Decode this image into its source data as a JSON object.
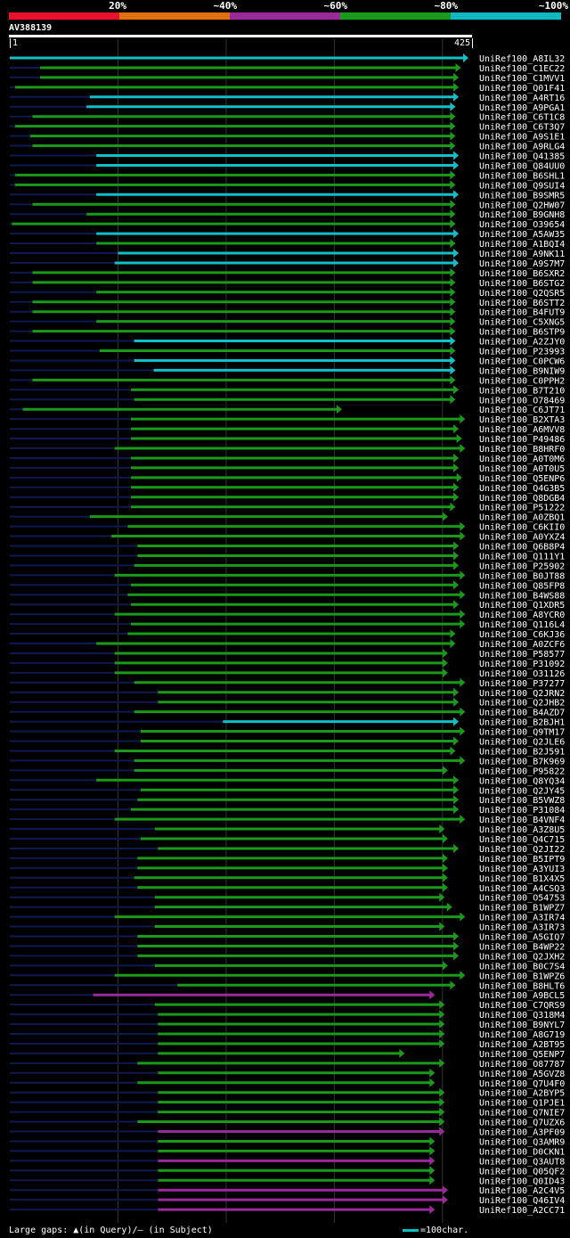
{
  "chart_data": {
    "type": "alignment-map",
    "query_name": "AV388139",
    "query_start": "1",
    "query_end": "425",
    "query_length": 425,
    "legend": [
      {
        "label": "",
        "color": "#e8102a"
      },
      {
        "label": "20%",
        "color": "#e07010"
      },
      {
        "label": "~40%",
        "color": "#9a2a9a"
      },
      {
        "label": "~60%",
        "color": "#1a9a1a"
      },
      {
        "label": "~80%",
        "color": "#10b8c0"
      },
      {
        "label": "~100%",
        "color": ""
      }
    ],
    "identity_colors": {
      "cyan": "#10c0c8",
      "green": "#1a9a1a",
      "purple": "#9a2a9a"
    },
    "hits": [
      {
        "name": "UniRef100_A8IL32",
        "start": 1,
        "end": 425,
        "color": "cyan"
      },
      {
        "name": "UniRef100_C1EC22",
        "start": 29,
        "end": 418,
        "color": "green"
      },
      {
        "name": "UniRef100_C1MVV1",
        "start": 29,
        "end": 416,
        "color": "green"
      },
      {
        "name": "UniRef100_Q01F41",
        "start": 6,
        "end": 416,
        "color": "green"
      },
      {
        "name": "UniRef100_A4RT16",
        "start": 75,
        "end": 416,
        "color": "cyan"
      },
      {
        "name": "UniRef100_A9PGA1",
        "start": 72,
        "end": 413,
        "color": "cyan"
      },
      {
        "name": "UniRef100_C6T1C8",
        "start": 22,
        "end": 413,
        "color": "green"
      },
      {
        "name": "UniRef100_C6T3Q7",
        "start": 6,
        "end": 413,
        "color": "green"
      },
      {
        "name": "UniRef100_A9S1E1",
        "start": 20,
        "end": 413,
        "color": "green"
      },
      {
        "name": "UniRef100_A9RLG4",
        "start": 22,
        "end": 413,
        "color": "green"
      },
      {
        "name": "UniRef100_Q41385",
        "start": 81,
        "end": 416,
        "color": "cyan"
      },
      {
        "name": "UniRef100_Q84UU0",
        "start": 81,
        "end": 416,
        "color": "cyan"
      },
      {
        "name": "UniRef100_B6SHL1",
        "start": 6,
        "end": 413,
        "color": "green"
      },
      {
        "name": "UniRef100_Q9SUI4",
        "start": 6,
        "end": 413,
        "color": "green"
      },
      {
        "name": "UniRef100_B9SMR5",
        "start": 81,
        "end": 416,
        "color": "cyan"
      },
      {
        "name": "UniRef100_Q2HW07",
        "start": 22,
        "end": 413,
        "color": "green"
      },
      {
        "name": "UniRef100_B9GNH8",
        "start": 72,
        "end": 413,
        "color": "green"
      },
      {
        "name": "UniRef100_O39654",
        "start": 3,
        "end": 413,
        "color": "green"
      },
      {
        "name": "UniRef100_A5AW35",
        "start": 81,
        "end": 416,
        "color": "cyan"
      },
      {
        "name": "UniRef100_A1BQI4",
        "start": 81,
        "end": 413,
        "color": "green"
      },
      {
        "name": "UniRef100_A9NK11",
        "start": 101,
        "end": 416,
        "color": "cyan"
      },
      {
        "name": "UniRef100_A9S7M7",
        "start": 98,
        "end": 416,
        "color": "cyan"
      },
      {
        "name": "UniRef100_B6SXR2",
        "start": 22,
        "end": 413,
        "color": "green"
      },
      {
        "name": "UniRef100_B6STG2",
        "start": 22,
        "end": 413,
        "color": "green"
      },
      {
        "name": "UniRef100_Q2QSR5",
        "start": 81,
        "end": 413,
        "color": "green"
      },
      {
        "name": "UniRef100_B6STT2",
        "start": 22,
        "end": 413,
        "color": "green"
      },
      {
        "name": "UniRef100_B4FUT9",
        "start": 22,
        "end": 413,
        "color": "green"
      },
      {
        "name": "UniRef100_C5XNG5",
        "start": 81,
        "end": 413,
        "color": "green"
      },
      {
        "name": "UniRef100_B6STP9",
        "start": 22,
        "end": 413,
        "color": "green"
      },
      {
        "name": "UniRef100_A2ZJY0",
        "start": 116,
        "end": 413,
        "color": "cyan"
      },
      {
        "name": "UniRef100_P23993",
        "start": 84,
        "end": 413,
        "color": "green"
      },
      {
        "name": "UniRef100_C0PCW6",
        "start": 116,
        "end": 413,
        "color": "cyan"
      },
      {
        "name": "UniRef100_B9NIW9",
        "start": 134,
        "end": 413,
        "color": "cyan"
      },
      {
        "name": "UniRef100_C0PPH2",
        "start": 22,
        "end": 413,
        "color": "green"
      },
      {
        "name": "UniRef100_B7T210",
        "start": 113,
        "end": 416,
        "color": "green"
      },
      {
        "name": "UniRef100_O78469",
        "start": 116,
        "end": 413,
        "color": "green"
      },
      {
        "name": "UniRef100_C6JT71",
        "start": 13,
        "end": 308,
        "color": "green"
      },
      {
        "name": "UniRef100_B2XTA3",
        "start": 113,
        "end": 422,
        "color": "green"
      },
      {
        "name": "UniRef100_A6MVV8",
        "start": 113,
        "end": 416,
        "color": "green"
      },
      {
        "name": "UniRef100_P49486",
        "start": 113,
        "end": 419,
        "color": "green"
      },
      {
        "name": "UniRef100_B8HRF0",
        "start": 98,
        "end": 422,
        "color": "green"
      },
      {
        "name": "UniRef100_A0T0M6",
        "start": 113,
        "end": 416,
        "color": "green"
      },
      {
        "name": "UniRef100_A0T0U5",
        "start": 113,
        "end": 416,
        "color": "green"
      },
      {
        "name": "UniRef100_Q5ENP6",
        "start": 113,
        "end": 419,
        "color": "green"
      },
      {
        "name": "UniRef100_Q4G3B5",
        "start": 113,
        "end": 416,
        "color": "green"
      },
      {
        "name": "UniRef100_Q8DGB4",
        "start": 113,
        "end": 416,
        "color": "green"
      },
      {
        "name": "UniRef100_P51222",
        "start": 113,
        "end": 413,
        "color": "green"
      },
      {
        "name": "UniRef100_A0ZBQ1",
        "start": 75,
        "end": 406,
        "color": "green"
      },
      {
        "name": "UniRef100_C6KII0",
        "start": 110,
        "end": 422,
        "color": "green"
      },
      {
        "name": "UniRef100_A0YXZ4",
        "start": 95,
        "end": 422,
        "color": "green"
      },
      {
        "name": "UniRef100_Q6B8P4",
        "start": 119,
        "end": 416,
        "color": "green"
      },
      {
        "name": "UniRef100_Q111Y1",
        "start": 119,
        "end": 416,
        "color": "green"
      },
      {
        "name": "UniRef100_P25902",
        "start": 116,
        "end": 416,
        "color": "green"
      },
      {
        "name": "UniRef100_B0JT88",
        "start": 98,
        "end": 422,
        "color": "green"
      },
      {
        "name": "UniRef100_Q85FP8",
        "start": 113,
        "end": 416,
        "color": "green"
      },
      {
        "name": "UniRef100_B4WS88",
        "start": 110,
        "end": 422,
        "color": "green"
      },
      {
        "name": "UniRef100_Q1XDR5",
        "start": 113,
        "end": 416,
        "color": "green"
      },
      {
        "name": "UniRef100_A8YCR0",
        "start": 98,
        "end": 422,
        "color": "green"
      },
      {
        "name": "UniRef100_Q116L4",
        "start": 113,
        "end": 422,
        "color": "green"
      },
      {
        "name": "UniRef100_C6KJ36",
        "start": 110,
        "end": 413,
        "color": "green"
      },
      {
        "name": "UniRef100_A0ZCF6",
        "start": 81,
        "end": 413,
        "color": "green"
      },
      {
        "name": "UniRef100_P58577",
        "start": 98,
        "end": 406,
        "color": "green"
      },
      {
        "name": "UniRef100_P31092",
        "start": 98,
        "end": 406,
        "color": "green"
      },
      {
        "name": "UniRef100_O31126",
        "start": 98,
        "end": 406,
        "color": "green"
      },
      {
        "name": "UniRef100_P37277",
        "start": 116,
        "end": 422,
        "color": "green"
      },
      {
        "name": "UniRef100_Q2JRN2",
        "start": 138,
        "end": 416,
        "color": "green"
      },
      {
        "name": "UniRef100_Q2JHB2",
        "start": 138,
        "end": 416,
        "color": "green"
      },
      {
        "name": "UniRef100_B4AZD7",
        "start": 116,
        "end": 422,
        "color": "green"
      },
      {
        "name": "UniRef100_B2BJH1",
        "start": 198,
        "end": 416,
        "color": "cyan"
      },
      {
        "name": "UniRef100_Q9TM17",
        "start": 122,
        "end": 422,
        "color": "green"
      },
      {
        "name": "UniRef100_Q2JLE6",
        "start": 122,
        "end": 416,
        "color": "green"
      },
      {
        "name": "UniRef100_B2J591",
        "start": 98,
        "end": 413,
        "color": "green"
      },
      {
        "name": "UniRef100_B7K969",
        "start": 116,
        "end": 422,
        "color": "green"
      },
      {
        "name": "UniRef100_P95822",
        "start": 116,
        "end": 406,
        "color": "green"
      },
      {
        "name": "UniRef100_Q8YQ34",
        "start": 81,
        "end": 416,
        "color": "green"
      },
      {
        "name": "UniRef100_Q2JY45",
        "start": 122,
        "end": 416,
        "color": "green"
      },
      {
        "name": "UniRef100_B5VWZ8",
        "start": 119,
        "end": 416,
        "color": "green"
      },
      {
        "name": "UniRef100_P31084",
        "start": 113,
        "end": 416,
        "color": "green"
      },
      {
        "name": "UniRef100_B4VNF4",
        "start": 98,
        "end": 422,
        "color": "green"
      },
      {
        "name": "UniRef100_A3Z8U5",
        "start": 135,
        "end": 403,
        "color": "green"
      },
      {
        "name": "UniRef100_Q4C715",
        "start": 122,
        "end": 406,
        "color": "green"
      },
      {
        "name": "UniRef100_Q2JI22",
        "start": 138,
        "end": 416,
        "color": "green"
      },
      {
        "name": "UniRef100_B5IPT9",
        "start": 119,
        "end": 406,
        "color": "green"
      },
      {
        "name": "UniRef100_A3YUI3",
        "start": 119,
        "end": 406,
        "color": "green"
      },
      {
        "name": "UniRef100_B1X4X5",
        "start": 116,
        "end": 406,
        "color": "green"
      },
      {
        "name": "UniRef100_A4CSQ3",
        "start": 119,
        "end": 406,
        "color": "green"
      },
      {
        "name": "UniRef100_O54753",
        "start": 135,
        "end": 403,
        "color": "green"
      },
      {
        "name": "UniRef100_B1WPZ7",
        "start": 135,
        "end": 410,
        "color": "green"
      },
      {
        "name": "UniRef100_A3IR74",
        "start": 98,
        "end": 422,
        "color": "green"
      },
      {
        "name": "UniRef100_A3IR73",
        "start": 135,
        "end": 403,
        "color": "green"
      },
      {
        "name": "UniRef100_A5GIQ7",
        "start": 119,
        "end": 416,
        "color": "green"
      },
      {
        "name": "UniRef100_B4WP22",
        "start": 119,
        "end": 416,
        "color": "green"
      },
      {
        "name": "UniRef100_Q2JXH2",
        "start": 119,
        "end": 416,
        "color": "green"
      },
      {
        "name": "UniRef100_B0C7S4",
        "start": 135,
        "end": 406,
        "color": "green"
      },
      {
        "name": "UniRef100_B1WPZ6",
        "start": 98,
        "end": 422,
        "color": "green"
      },
      {
        "name": "UniRef100_B8HLT6",
        "start": 156,
        "end": 413,
        "color": "green"
      },
      {
        "name": "UniRef100_A9BCL5",
        "start": 78,
        "end": 394,
        "color": "purple"
      },
      {
        "name": "UniRef100_C7QRS9",
        "start": 135,
        "end": 403,
        "color": "green"
      },
      {
        "name": "UniRef100_Q318M4",
        "start": 138,
        "end": 403,
        "color": "green"
      },
      {
        "name": "UniRef100_B9NYL7",
        "start": 138,
        "end": 403,
        "color": "green"
      },
      {
        "name": "UniRef100_A8G719",
        "start": 138,
        "end": 403,
        "color": "green"
      },
      {
        "name": "UniRef100_A2BT95",
        "start": 138,
        "end": 403,
        "color": "green"
      },
      {
        "name": "UniRef100_Q5ENP7",
        "start": 138,
        "end": 366,
        "color": "green"
      },
      {
        "name": "UniRef100_O87787",
        "start": 119,
        "end": 403,
        "color": "green"
      },
      {
        "name": "UniRef100_A5GVZ8",
        "start": 138,
        "end": 394,
        "color": "green"
      },
      {
        "name": "UniRef100_Q7U4F0",
        "start": 119,
        "end": 394,
        "color": "green"
      },
      {
        "name": "UniRef100_A2BYP5",
        "start": 138,
        "end": 403,
        "color": "green"
      },
      {
        "name": "UniRef100_Q1PJE1",
        "start": 138,
        "end": 403,
        "color": "green"
      },
      {
        "name": "UniRef100_Q7NIE7",
        "start": 138,
        "end": 403,
        "color": "green"
      },
      {
        "name": "UniRef100_Q7UZX6",
        "start": 119,
        "end": 403,
        "color": "green"
      },
      {
        "name": "UniRef100_A3PF09",
        "start": 138,
        "end": 403,
        "color": "purple"
      },
      {
        "name": "UniRef100_Q3AMR9",
        "start": 138,
        "end": 394,
        "color": "green"
      },
      {
        "name": "UniRef100_D0CKN1",
        "start": 138,
        "end": 394,
        "color": "green"
      },
      {
        "name": "UniRef100_Q3AUT8",
        "start": 138,
        "end": 394,
        "color": "purple"
      },
      {
        "name": "UniRef100_Q05QF2",
        "start": 138,
        "end": 394,
        "color": "green"
      },
      {
        "name": "UniRef100_Q0ID43",
        "start": 138,
        "end": 394,
        "color": "green"
      },
      {
        "name": "UniRef100_A2C4V5",
        "start": 138,
        "end": 406,
        "color": "purple"
      },
      {
        "name": "UniRef100_Q46IV4",
        "start": 138,
        "end": 406,
        "color": "purple"
      },
      {
        "name": "UniRef100_A2CC71",
        "start": 138,
        "end": 394,
        "color": "purple"
      }
    ]
  },
  "footer": {
    "gaps_note": "Large gaps: ▲(in Query)/– (in Subject)",
    "scale_label": "=100char."
  }
}
